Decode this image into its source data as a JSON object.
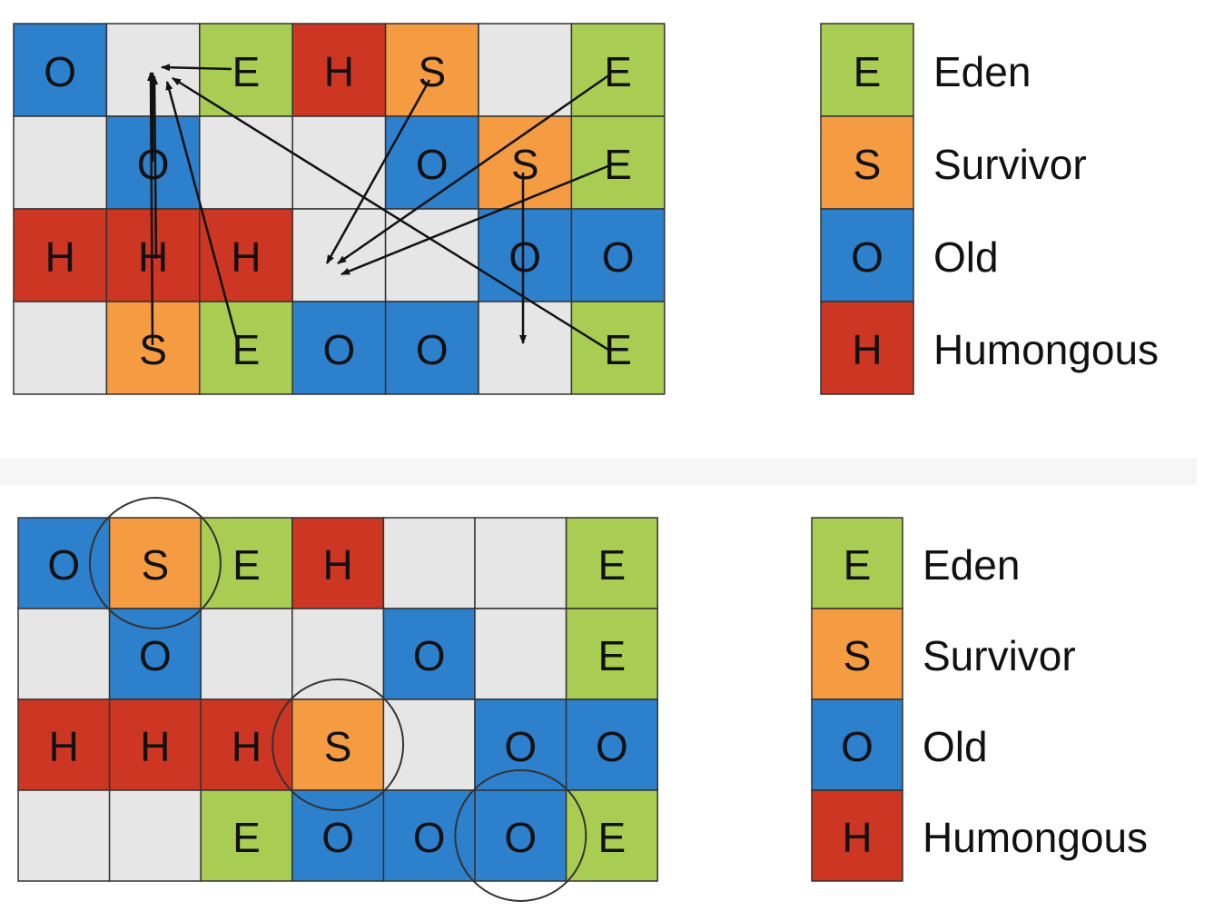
{
  "colors": {
    "E": "#a9cd52",
    "S": "#f59c42",
    "O": "#2d80cc",
    "H": "#cc3622",
    "empty": "#e6e6e6",
    "grid_line": "#333333",
    "arrow": "#111111",
    "circle": "#333333"
  },
  "legend": [
    {
      "code": "E",
      "label": "Eden"
    },
    {
      "code": "S",
      "label": "Survivor"
    },
    {
      "code": "O",
      "label": "Old"
    },
    {
      "code": "H",
      "label": "Humongous"
    }
  ],
  "before_grid": [
    [
      "O",
      "",
      "E",
      "H",
      "S",
      "",
      "E"
    ],
    [
      "",
      "O",
      "",
      "",
      "O",
      "S",
      "E"
    ],
    [
      "H",
      "H",
      "H",
      "",
      "",
      "O",
      "O"
    ],
    [
      "",
      "S",
      "E",
      "O",
      "O",
      "",
      "E"
    ]
  ],
  "after_grid": [
    [
      "O",
      "S",
      "E",
      "H",
      "",
      "",
      "E"
    ],
    [
      "",
      "O",
      "",
      "",
      "O",
      "",
      "E"
    ],
    [
      "H",
      "H",
      "H",
      "S",
      "",
      "O",
      "O"
    ],
    [
      "",
      "",
      "E",
      "O",
      "O",
      "O",
      "E"
    ]
  ],
  "evacuation_arrows": [
    {
      "from": "E",
      "to": "empty",
      "from_cell": [
        0,
        2
      ],
      "to_cell": [
        0,
        1
      ]
    },
    {
      "from": "O",
      "to": "empty",
      "from_cell": [
        1,
        1
      ],
      "to_cell": [
        0,
        1
      ]
    },
    {
      "from": "H",
      "to": "empty",
      "from_cell": [
        2,
        1
      ],
      "to_cell": [
        0,
        1
      ]
    },
    {
      "from": "S",
      "to": "empty",
      "from_cell": [
        3,
        1
      ],
      "to_cell": [
        0,
        1
      ]
    },
    {
      "from": "E",
      "to": "empty",
      "from_cell": [
        3,
        2
      ],
      "to_cell": [
        0,
        1
      ]
    },
    {
      "from": "E",
      "to": "empty",
      "from_cell": [
        3,
        6
      ],
      "to_cell": [
        0,
        1
      ]
    },
    {
      "from": "S",
      "to": "empty",
      "from_cell": [
        0,
        4
      ],
      "to_cell": [
        2,
        3
      ]
    },
    {
      "from": "E",
      "to": "empty",
      "from_cell": [
        0,
        6
      ],
      "to_cell": [
        2,
        3
      ]
    },
    {
      "from": "E",
      "to": "empty",
      "from_cell": [
        1,
        6
      ],
      "to_cell": [
        2,
        3
      ]
    },
    {
      "from": "S",
      "to": "empty",
      "from_cell": [
        1,
        5
      ],
      "to_cell": [
        3,
        5
      ]
    }
  ],
  "highlighted_after_cells": [
    [
      0,
      1
    ],
    [
      2,
      3
    ],
    [
      3,
      5
    ]
  ]
}
